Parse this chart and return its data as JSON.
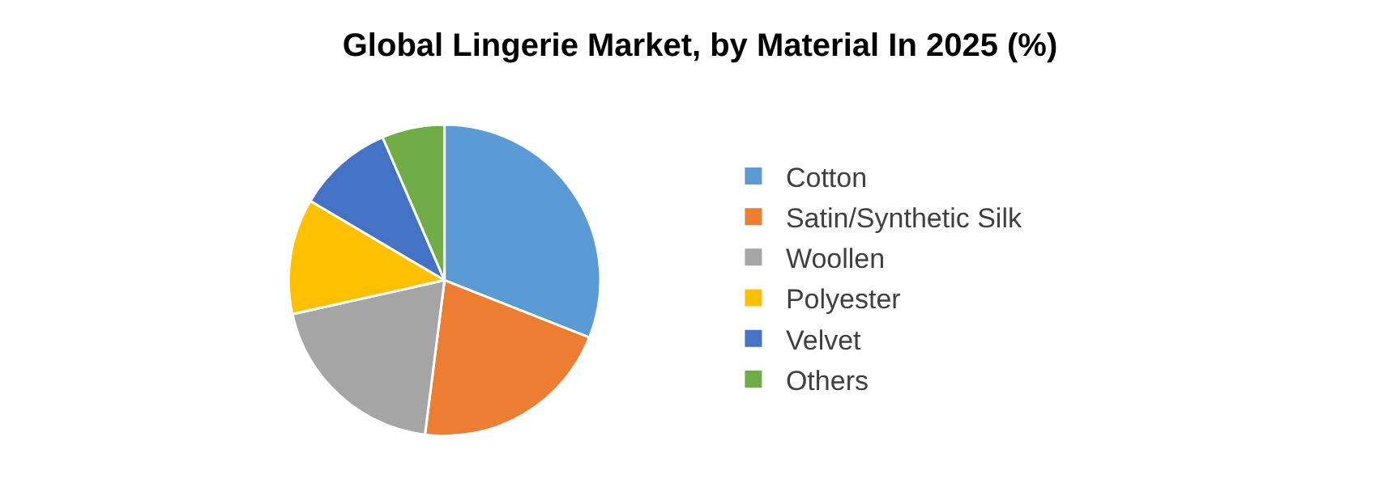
{
  "chart_data": {
    "type": "pie",
    "title": "Global Lingerie Market, by Material In 2025 (%)",
    "categories": [
      "Cotton",
      "Satin/Synthetic Silk",
      "Woollen",
      "Polyester",
      "Velvet",
      "Others"
    ],
    "values": [
      31,
      21,
      19.5,
      12,
      10,
      6.5
    ],
    "colors": [
      "#5b9bd5",
      "#ed7d31",
      "#a5a5a5",
      "#ffc000",
      "#4472c4",
      "#70ad47"
    ],
    "legend": "right"
  }
}
